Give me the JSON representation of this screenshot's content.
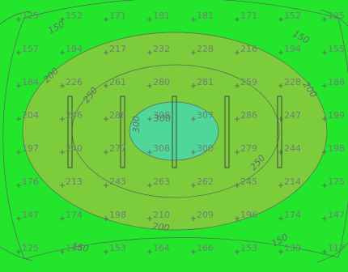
{
  "colors": {
    "background": "#22e52c",
    "band_200": "#7dcc3c",
    "band_300": "#4fd79a",
    "contour_line": "#55655c",
    "label": "#6f7f78"
  },
  "illuminance_grid": [
    [
      "125",
      "152",
      "171",
      "181",
      "181",
      "171",
      "152",
      "125"
    ],
    [
      "157",
      "194",
      "217",
      "232",
      "228",
      "216",
      "194",
      "155"
    ],
    [
      "184",
      "226",
      "261",
      "280",
      "281",
      "259",
      "228",
      "188"
    ],
    [
      "204",
      "246",
      "286",
      "308",
      "307",
      "286",
      "247",
      "199"
    ],
    [
      "197",
      "240",
      "277",
      "308",
      "300",
      "279",
      "244",
      "198"
    ],
    [
      "176",
      "213",
      "243",
      "263",
      "262",
      "245",
      "214",
      "175"
    ],
    [
      "147",
      "174",
      "198",
      "210",
      "209",
      "196",
      "174",
      "147"
    ],
    [
      "125",
      "138",
      "153",
      "164",
      "166",
      "153",
      "139",
      "117"
    ]
  ],
  "contour_labels": {
    "c150": "150",
    "c200": "200",
    "c250": "250",
    "c300": "300"
  }
}
